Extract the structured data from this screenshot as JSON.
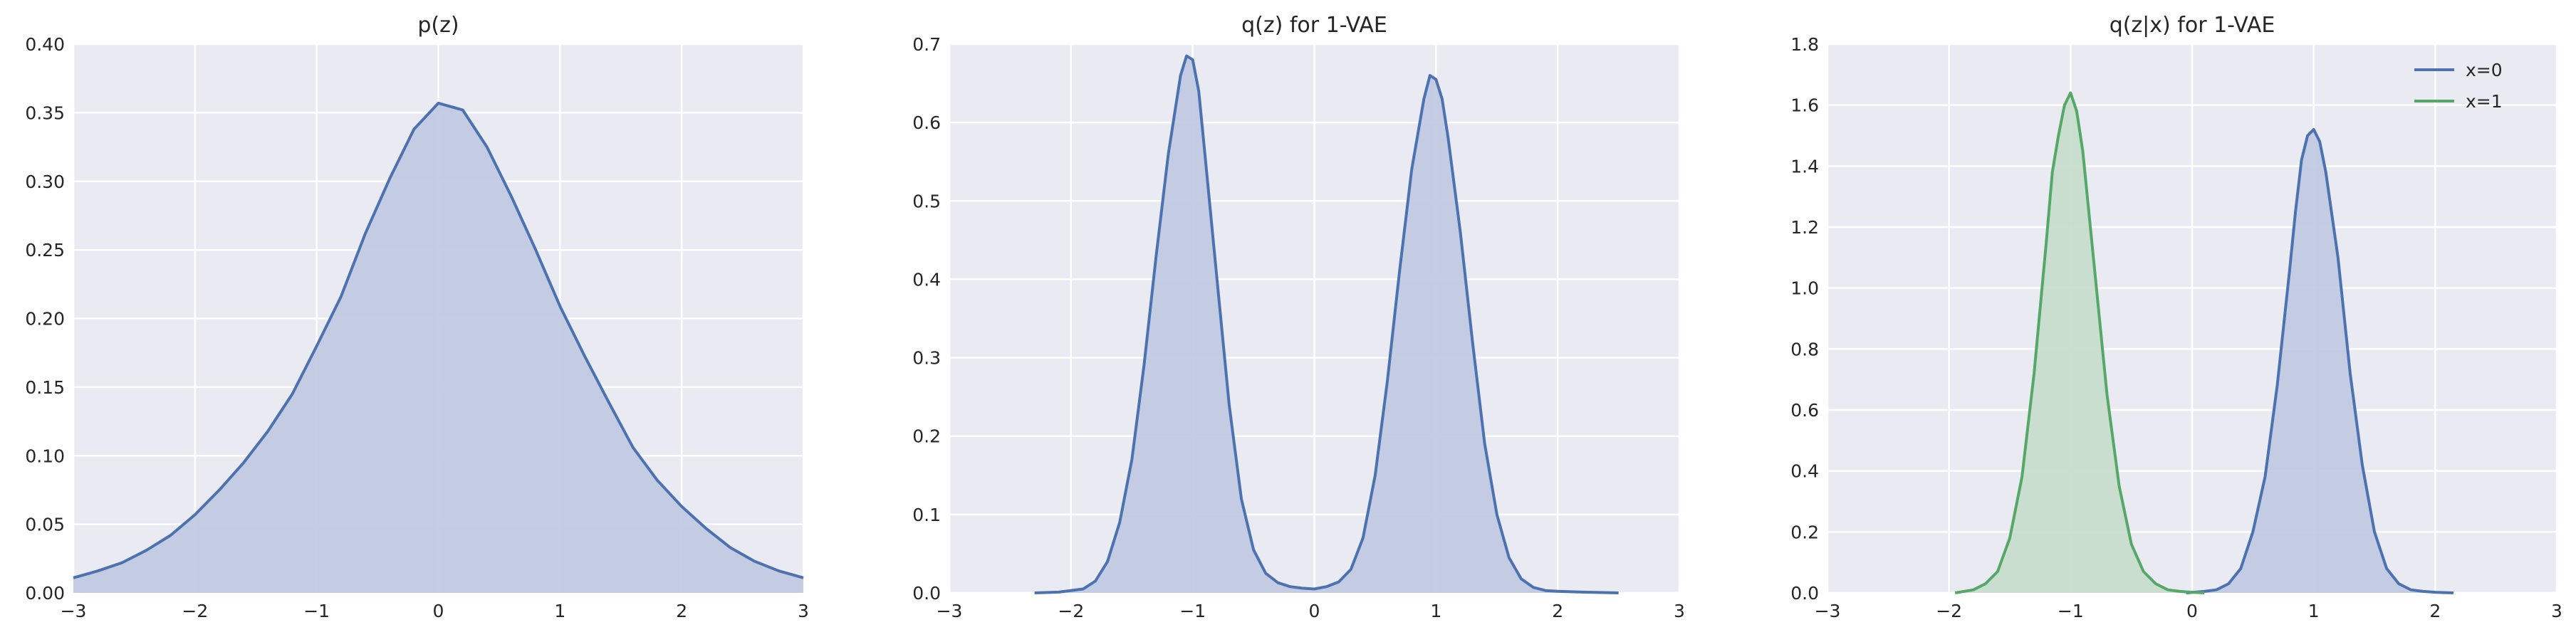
{
  "figure": {
    "background": "#ffffff",
    "plot_background": "#eaeaf2",
    "grid_color": "#ffffff"
  },
  "chart_data": [
    {
      "type": "area",
      "title": "p(z)",
      "xlabel": "",
      "ylabel": "",
      "xlim": [
        -3,
        3
      ],
      "ylim": [
        0,
        0.4
      ],
      "xticks": [
        "−3",
        "−2",
        "−1",
        "0",
        "1",
        "2",
        "3"
      ],
      "xtick_values": [
        -3,
        -2,
        -1,
        0,
        1,
        2,
        3
      ],
      "yticks": [
        "0.00",
        "0.05",
        "0.10",
        "0.15",
        "0.20",
        "0.25",
        "0.30",
        "0.35",
        "0.40"
      ],
      "ytick_values": [
        0,
        0.05,
        0.1,
        0.15,
        0.2,
        0.25,
        0.3,
        0.35,
        0.4
      ],
      "grid": true,
      "legend": null,
      "series": [
        {
          "color": "#4c72b0",
          "fill": "#c2cae3",
          "x": [
            -3,
            -2.8,
            -2.6,
            -2.4,
            -2.2,
            -2,
            -1.8,
            -1.6,
            -1.4,
            -1.2,
            -1,
            -0.8,
            -0.6,
            -0.4,
            -0.2,
            0,
            0.2,
            0.4,
            0.6,
            0.8,
            1,
            1.2,
            1.4,
            1.6,
            1.8,
            2,
            2.2,
            2.4,
            2.6,
            2.8,
            3
          ],
          "y": [
            0.011,
            0.016,
            0.022,
            0.031,
            0.042,
            0.057,
            0.075,
            0.095,
            0.118,
            0.145,
            0.18,
            0.216,
            0.262,
            0.302,
            0.338,
            0.357,
            0.352,
            0.325,
            0.289,
            0.25,
            0.209,
            0.173,
            0.139,
            0.106,
            0.082,
            0.063,
            0.047,
            0.033,
            0.023,
            0.016,
            0.011
          ]
        }
      ]
    },
    {
      "type": "area",
      "title": "q(z) for 1-VAE",
      "xlabel": "",
      "ylabel": "",
      "xlim": [
        -3,
        3
      ],
      "ylim": [
        0,
        0.7
      ],
      "xticks": [
        "−3",
        "−2",
        "−1",
        "0",
        "1",
        "2",
        "3"
      ],
      "xtick_values": [
        -3,
        -2,
        -1,
        0,
        1,
        2,
        3
      ],
      "yticks": [
        "0.0",
        "0.1",
        "0.2",
        "0.3",
        "0.4",
        "0.5",
        "0.6",
        "0.7"
      ],
      "ytick_values": [
        0,
        0.1,
        0.2,
        0.3,
        0.4,
        0.5,
        0.6,
        0.7
      ],
      "grid": true,
      "legend": null,
      "series": [
        {
          "color": "#4c72b0",
          "fill": "#c2cae3",
          "x": [
            -2.3,
            -2.1,
            -1.9,
            -1.8,
            -1.7,
            -1.6,
            -1.5,
            -1.4,
            -1.3,
            -1.2,
            -1.1,
            -1.05,
            -1.0,
            -0.95,
            -0.9,
            -0.8,
            -0.7,
            -0.6,
            -0.5,
            -0.4,
            -0.3,
            -0.2,
            -0.1,
            0,
            0.1,
            0.2,
            0.3,
            0.4,
            0.5,
            0.6,
            0.7,
            0.8,
            0.9,
            0.95,
            1.0,
            1.05,
            1.1,
            1.2,
            1.3,
            1.4,
            1.5,
            1.6,
            1.7,
            1.8,
            1.9,
            2.0,
            2.2,
            2.5
          ],
          "y": [
            0.0,
            0.001,
            0.005,
            0.015,
            0.04,
            0.09,
            0.17,
            0.29,
            0.43,
            0.56,
            0.66,
            0.685,
            0.68,
            0.64,
            0.56,
            0.4,
            0.24,
            0.12,
            0.055,
            0.025,
            0.013,
            0.008,
            0.006,
            0.005,
            0.008,
            0.014,
            0.03,
            0.07,
            0.15,
            0.27,
            0.41,
            0.54,
            0.63,
            0.66,
            0.655,
            0.63,
            0.58,
            0.46,
            0.32,
            0.19,
            0.1,
            0.045,
            0.018,
            0.007,
            0.003,
            0.002,
            0.001,
            0.0
          ]
        }
      ]
    },
    {
      "type": "area",
      "title": "q(z|x) for 1-VAE",
      "xlabel": "",
      "ylabel": "",
      "xlim": [
        -3,
        3
      ],
      "ylim": [
        0,
        1.8
      ],
      "xticks": [
        "−3",
        "−2",
        "−1",
        "0",
        "1",
        "2",
        "3"
      ],
      "xtick_values": [
        -3,
        -2,
        -1,
        0,
        1,
        2,
        3
      ],
      "yticks": [
        "0.0",
        "0.2",
        "0.4",
        "0.6",
        "0.8",
        "1.0",
        "1.2",
        "1.4",
        "1.6",
        "1.8"
      ],
      "ytick_values": [
        0,
        0.2,
        0.4,
        0.6,
        0.8,
        1.0,
        1.2,
        1.4,
        1.6,
        1.8
      ],
      "grid": true,
      "legend": {
        "position": "top-right",
        "entries": [
          "x=0",
          "x=1"
        ]
      },
      "series": [
        {
          "name": "x=0",
          "color": "#4c72b0",
          "fill": "#c2cae3",
          "x": [
            -0.05,
            0.1,
            0.2,
            0.3,
            0.4,
            0.5,
            0.6,
            0.7,
            0.8,
            0.85,
            0.9,
            0.95,
            1.0,
            1.05,
            1.1,
            1.2,
            1.3,
            1.4,
            1.5,
            1.6,
            1.7,
            1.8,
            1.9,
            2.0,
            2.15
          ],
          "y": [
            0.0,
            0.005,
            0.01,
            0.03,
            0.08,
            0.2,
            0.38,
            0.68,
            1.05,
            1.25,
            1.42,
            1.5,
            1.52,
            1.48,
            1.38,
            1.1,
            0.72,
            0.42,
            0.2,
            0.08,
            0.03,
            0.01,
            0.005,
            0.002,
            0.0
          ]
        },
        {
          "name": "x=1",
          "color": "#55a868",
          "fill": "#c8ddcc",
          "x": [
            -1.95,
            -1.8,
            -1.7,
            -1.6,
            -1.5,
            -1.4,
            -1.3,
            -1.2,
            -1.15,
            -1.1,
            -1.05,
            -1.0,
            -0.95,
            -0.9,
            -0.8,
            -0.7,
            -0.6,
            -0.5,
            -0.4,
            -0.3,
            -0.2,
            -0.1,
            0.0,
            0.1
          ],
          "y": [
            0.0,
            0.01,
            0.03,
            0.07,
            0.18,
            0.38,
            0.72,
            1.15,
            1.38,
            1.5,
            1.6,
            1.64,
            1.58,
            1.45,
            1.05,
            0.65,
            0.35,
            0.16,
            0.07,
            0.03,
            0.01,
            0.005,
            0.002,
            0.0
          ]
        }
      ]
    }
  ]
}
